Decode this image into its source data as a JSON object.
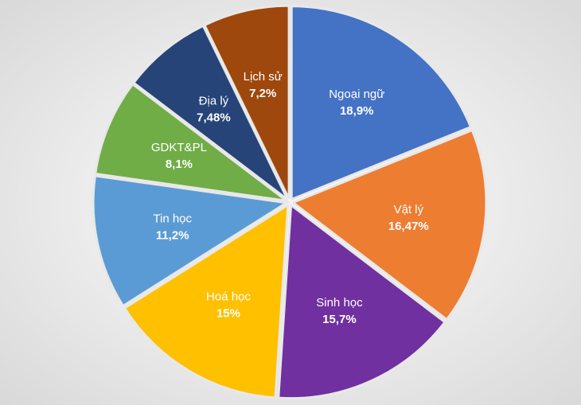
{
  "chart_data": {
    "type": "pie",
    "categories": [
      "Ngoại ngữ",
      "Vật lý",
      "Sinh học",
      "Hoá học",
      "Tin học",
      "GDKT&PL",
      "Địa lý",
      "Lịch sử"
    ],
    "values": [
      18.9,
      16.47,
      15.7,
      15,
      11.2,
      8.1,
      7.48,
      7.2
    ],
    "value_labels": [
      "18,9%",
      "16,47%",
      "15,7%",
      "15%",
      "11,2%",
      "8,1%",
      "7,48%",
      "7,2%"
    ],
    "colors": [
      "#4472c4",
      "#ed7d31",
      "#7030a0",
      "#ffc000",
      "#5b9bd5",
      "#70ad47",
      "#264478",
      "#9e480e"
    ]
  }
}
